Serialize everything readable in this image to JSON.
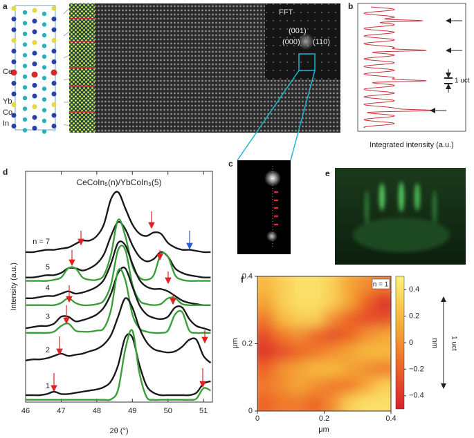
{
  "panel_labels": [
    "a",
    "b",
    "c",
    "d",
    "e",
    "f"
  ],
  "panel_a": {
    "atoms": [
      "Ce",
      "Yb",
      "Co",
      "In"
    ],
    "fft": {
      "title": "FFT",
      "spots": [
        "(001)",
        "(000)",
        "(110)"
      ]
    }
  },
  "panel_b": {
    "scale_label": "1 uct",
    "xlabel": "Integrated intensity (a.u.)"
  },
  "chart_data": [
    {
      "type": "line",
      "title": "CeCoIn₅(n)/YbCoIn₅(5)",
      "xlabel": "2θ (°)",
      "ylabel": "Intensity (a.u.)",
      "xlim": [
        46,
        51.25
      ],
      "xticks": [
        46,
        47,
        48,
        49,
        50,
        51
      ],
      "ylim": [
        0,
        100
      ],
      "x": [
        46,
        46.2,
        46.4,
        46.6,
        46.8,
        47,
        47.2,
        47.4,
        47.6,
        47.8,
        48,
        48.2,
        48.4,
        48.6,
        48.8,
        49,
        49.2,
        49.4,
        49.6,
        49.8,
        50,
        50.2,
        50.4,
        50.6,
        50.8,
        51,
        51.2
      ],
      "series": [
        {
          "name": "n = 7",
          "color": "#1a1a1a",
          "values": [
            65,
            65,
            65.5,
            66,
            66,
            66.5,
            67,
            68.5,
            70,
            70,
            72,
            77,
            88,
            91,
            84,
            77,
            73,
            72,
            73.5,
            73,
            69,
            67,
            66,
            66,
            65.5,
            65,
            65
          ]
        },
        {
          "name": "5",
          "color": "#1a1a1a",
          "values": [
            54,
            54,
            54.5,
            55,
            55,
            56,
            58,
            58,
            57,
            58,
            60,
            64,
            72,
            78,
            75,
            68,
            63,
            61,
            62,
            65,
            63,
            58,
            56,
            55,
            54.5,
            54,
            54
          ]
        },
        {
          "color": "#3a9e3a",
          "values": [
            52.5,
            52.5,
            52.5,
            52.5,
            53,
            54,
            58,
            58,
            54,
            53,
            53,
            55,
            64,
            79,
            72,
            59,
            54,
            53,
            55,
            64,
            63,
            55,
            53,
            52.5,
            52.5,
            52.5,
            52.5
          ]
        },
        {
          "name": "4",
          "color": "#1a1a1a",
          "values": [
            45,
            45,
            45.5,
            46,
            46,
            47,
            48,
            47,
            47.5,
            48.5,
            50,
            53,
            60,
            69,
            68,
            60,
            53,
            50,
            49,
            49,
            48,
            46,
            44,
            43,
            42.5,
            42,
            42
          ]
        },
        {
          "color": "#3a9e3a",
          "values": [
            42,
            42,
            42,
            42,
            42,
            43,
            45,
            43,
            42,
            42,
            42.5,
            44,
            51,
            66,
            66,
            51,
            44,
            42.5,
            42,
            42.5,
            45,
            45,
            42.5,
            42,
            42,
            42,
            42
          ]
        },
        {
          "name": "3",
          "color": "#1a1a1a",
          "values": [
            32,
            32.5,
            33,
            33,
            34,
            37,
            37,
            35,
            35.5,
            36.5,
            38,
            41,
            47,
            56,
            58,
            50,
            42,
            38,
            36.5,
            36,
            37,
            41,
            41,
            36,
            33,
            32,
            31
          ]
        },
        {
          "color": "#3a9e3a",
          "values": [
            30,
            30,
            30,
            30,
            30.5,
            33,
            34,
            31,
            30.5,
            30.5,
            31,
            32,
            40,
            57,
            53,
            38,
            32,
            30.5,
            30,
            30,
            31,
            38,
            39,
            31,
            30,
            30,
            30
          ]
        },
        {
          "name": "2",
          "color": "#1a1a1a",
          "values": [
            18,
            18.5,
            18.5,
            19,
            20,
            21,
            20,
            20.5,
            21,
            22,
            23,
            25,
            29,
            37,
            45,
            41,
            32,
            26,
            23,
            22,
            21.5,
            22,
            24,
            27,
            27,
            20,
            17
          ]
        },
        {
          "name": "1",
          "color": "#1a1a1a",
          "values": [
            3,
            3,
            3,
            3.5,
            4.5,
            3.5,
            3.5,
            4,
            4.5,
            5,
            5.5,
            6.5,
            9,
            16,
            28,
            28,
            16,
            7,
            4,
            3,
            3,
            3,
            3,
            3,
            4,
            8,
            9
          ]
        },
        {
          "color": "#3a9e3a",
          "values": [
            1,
            1,
            1,
            1,
            1,
            1,
            1,
            1,
            1,
            1,
            1,
            1,
            1.2,
            5.4,
            22.7,
            31,
            12.5,
            2.2,
            1,
            1,
            1,
            1,
            1,
            1,
            1.5,
            6,
            5
          ]
        }
      ]
    },
    {
      "type": "heatmap",
      "annotation": "n = 1",
      "xlabel": "μm",
      "ylabel": "μm",
      "xlim": [
        0,
        0.4
      ],
      "xticks": [
        0,
        0.2,
        0.4
      ],
      "ylim": [
        0,
        0.4
      ],
      "yticks": [
        0,
        0.2,
        0.4
      ],
      "z": [
        [
          0.2,
          0.3,
          0.4,
          0.4,
          0.3,
          0.1,
          0.0,
          -0.1
        ],
        [
          0.1,
          0.3,
          0.4,
          0.4,
          0.3,
          0.1,
          -0.2,
          -0.4
        ],
        [
          -0.1,
          0.2,
          0.3,
          0.3,
          0.0,
          -0.2,
          -0.3,
          -0.3
        ],
        [
          -0.3,
          -0.1,
          0.0,
          -0.2,
          -0.3,
          -0.2,
          0.0,
          0.1
        ],
        [
          -0.4,
          -0.3,
          -0.2,
          -0.1,
          0.0,
          0.1,
          0.2,
          0.2
        ],
        [
          -0.2,
          0.0,
          0.1,
          0.2,
          0.2,
          0.1,
          0.0,
          -0.1
        ],
        [
          -0.1,
          0.0,
          0.1,
          0.0,
          -0.1,
          -0.1,
          0.1,
          0.3
        ],
        [
          -0.2,
          -0.1,
          -0.1,
          -0.2,
          0.0,
          0.3,
          0.4,
          0.4
        ]
      ],
      "colorbar": {
        "label": "nm",
        "lim": [
          -0.5,
          0.5
        ],
        "ticks": [
          0.4,
          0.2,
          0,
          {
            "value": -0.2,
            "label": "−0.2"
          },
          {
            "value": -0.4,
            "label": "−0.4"
          }
        ],
        "colors": [
          "#d8202a",
          "#ee6a28",
          "#f6b43a",
          "#fdf27a"
        ]
      },
      "side_label": "1 uct"
    }
  ]
}
